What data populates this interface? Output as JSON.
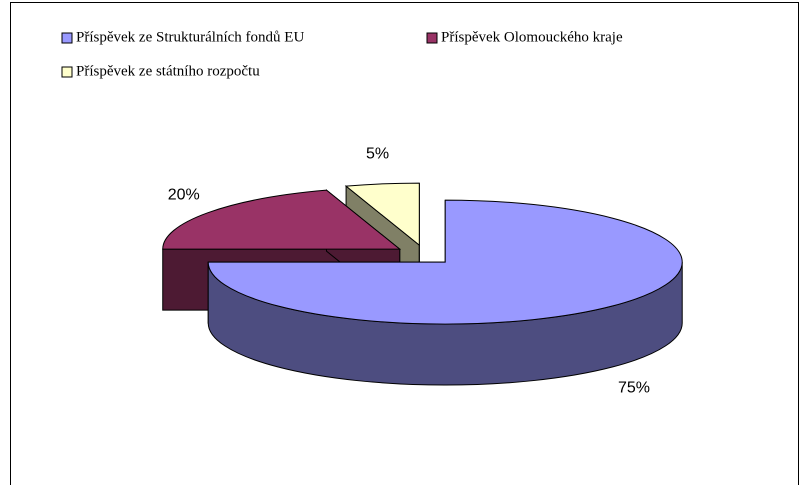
{
  "chart_data": {
    "type": "pie3d",
    "categories": [
      "Příspěvek ze Strukturálních fondů EU",
      "Příspěvek Olomouckého kraje",
      "Příspěvek ze státního rozpočtu"
    ],
    "values": [
      75,
      20,
      5
    ],
    "value_labels": [
      "75%",
      "20%",
      "5%"
    ],
    "colors": [
      "#9999ff",
      "#993366",
      "#ffffcc"
    ],
    "exploded": true,
    "legend": "top"
  }
}
